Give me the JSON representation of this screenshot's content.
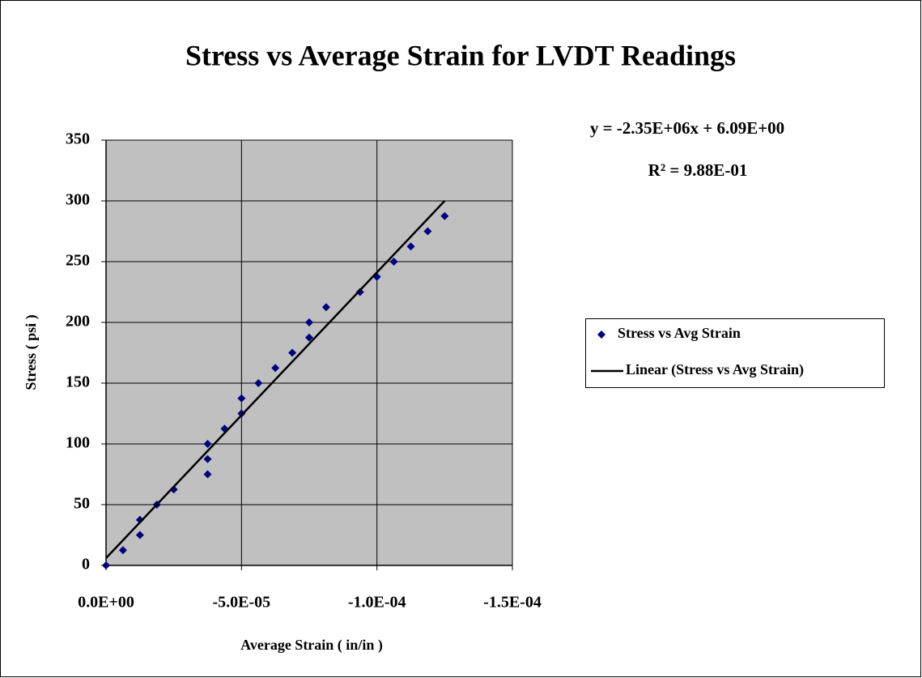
{
  "chart_data": {
    "type": "scatter",
    "title": "Stress vs Average Strain for LVDT Readings",
    "x_label": "Average  Strain  ( in/in )",
    "y_label": "Stress  ( psi )",
    "annotations": [
      "y = -2.35E+06x + 6.09E+00",
      "R² = 9.88E-01"
    ],
    "xlim": [
      0,
      -0.00015
    ],
    "xticks": [
      {
        "value": 0,
        "label": "0.0E+00"
      },
      {
        "value": -5e-05,
        "label": "-5.0E-05"
      },
      {
        "value": -0.0001,
        "label": "-1.0E-04"
      },
      {
        "value": -0.00015,
        "label": "-1.5E-04"
      }
    ],
    "ylim": [
      0,
      350
    ],
    "yticks": [
      0,
      50,
      100,
      150,
      200,
      250,
      300,
      350
    ],
    "grid": true,
    "background": "#c0c0c0",
    "legend": "right",
    "series": [
      {
        "name": "Stress vs Avg Strain",
        "color": "#000080",
        "kind": "marker",
        "x": [
          0,
          -6.25e-06,
          -1.25e-05,
          -1.25e-05,
          -1.875e-05,
          -2.5e-05,
          -3.75e-05,
          -3.75e-05,
          -3.75e-05,
          -4.375e-05,
          -5e-05,
          -5e-05,
          -5.625e-05,
          -6.25e-05,
          -6.875e-05,
          -7.5e-05,
          -7.5e-05,
          -8.125e-05,
          -9.375e-05,
          -0.0001,
          -0.00010625,
          -0.0001125,
          -0.00011875,
          -0.000125
        ],
        "values": [
          0,
          12.5,
          37.5,
          25,
          50,
          62.5,
          75,
          87.5,
          100,
          112.5,
          125,
          137.5,
          150,
          162.5,
          175,
          187.5,
          200,
          212.5,
          225,
          237.5,
          250,
          262.5,
          275,
          287.5
        ]
      },
      {
        "name": "Linear (Stress vs Avg Strain)",
        "color": "#000000",
        "kind": "line",
        "x": [
          0,
          -0.000125
        ],
        "values": [
          6,
          300
        ]
      }
    ]
  }
}
